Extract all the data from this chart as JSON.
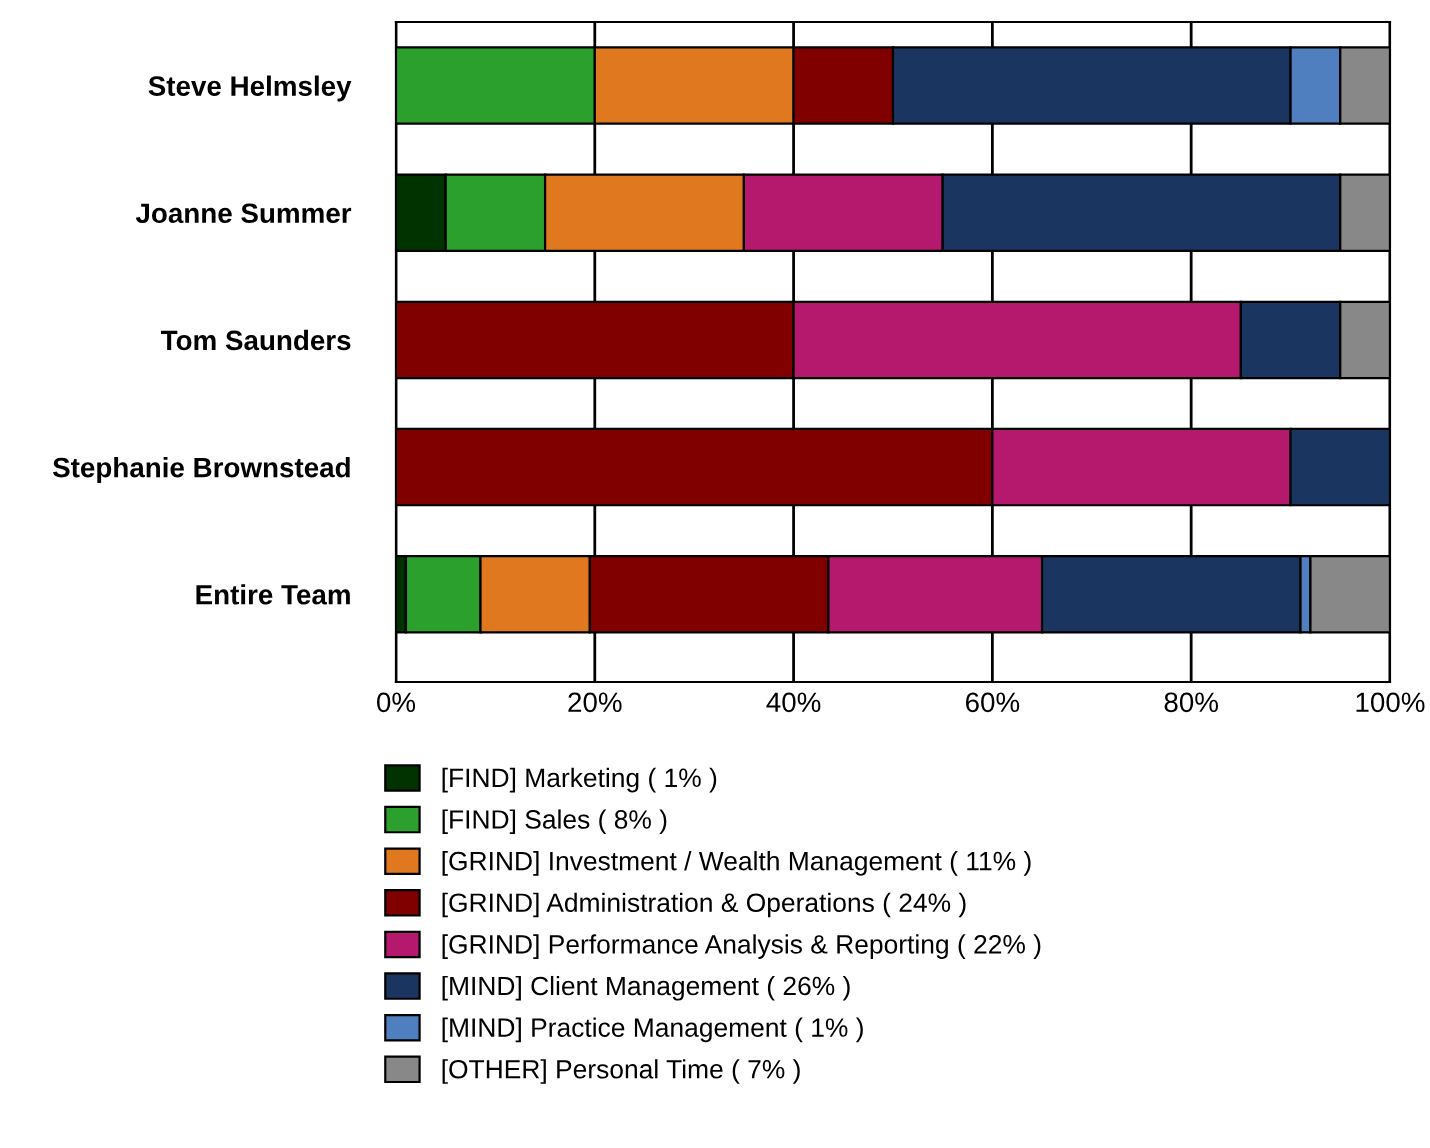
{
  "chart_data": {
    "type": "bar",
    "orientation": "horizontal",
    "stacked": true,
    "categories": [
      "Steve Helmsley",
      "Joanne Summer",
      "Tom Saunders",
      "Stephanie Brownstead",
      "Entire Team"
    ],
    "series": [
      {
        "name": "[FIND] Marketing ( 1% )",
        "color": "#003300",
        "values": [
          0,
          5,
          0,
          0,
          1
        ]
      },
      {
        "name": "[FIND] Sales ( 8% )",
        "color": "#2ca02c",
        "values": [
          20,
          10,
          0,
          0,
          7.5
        ]
      },
      {
        "name": "[GRIND] Investment / Wealth Management ( 11% )",
        "color": "#e07820",
        "values": [
          20,
          20,
          0,
          0,
          11
        ]
      },
      {
        "name": "[GRIND] Administration & Operations ( 24% )",
        "color": "#800000",
        "values": [
          10,
          0,
          40,
          60,
          24
        ]
      },
      {
        "name": "[GRIND] Performance Analysis & Reporting ( 22% )",
        "color": "#b5196e",
        "values": [
          0,
          20,
          45,
          30,
          21.5
        ]
      },
      {
        "name": "[MIND] Client Management ( 26% )",
        "color": "#1a3660",
        "values": [
          40,
          40,
          10,
          10,
          26
        ]
      },
      {
        "name": "[MIND] Practice Management ( 1% )",
        "color": "#4f7fbf",
        "values": [
          5,
          0,
          0,
          0,
          1
        ]
      },
      {
        "name": "[OTHER] Personal Time ( 7% )",
        "color": "#888888",
        "values": [
          5,
          5,
          5,
          0,
          8
        ]
      }
    ],
    "xlim": [
      0,
      100
    ],
    "xticks": [
      {
        "value": 0,
        "label": "0%"
      },
      {
        "value": 20,
        "label": "20%"
      },
      {
        "value": 40,
        "label": "40%"
      },
      {
        "value": 60,
        "label": "60%"
      },
      {
        "value": 80,
        "label": "80%"
      },
      {
        "value": 100,
        "label": "100%"
      }
    ],
    "grid": "x",
    "legend": "bottom"
  }
}
